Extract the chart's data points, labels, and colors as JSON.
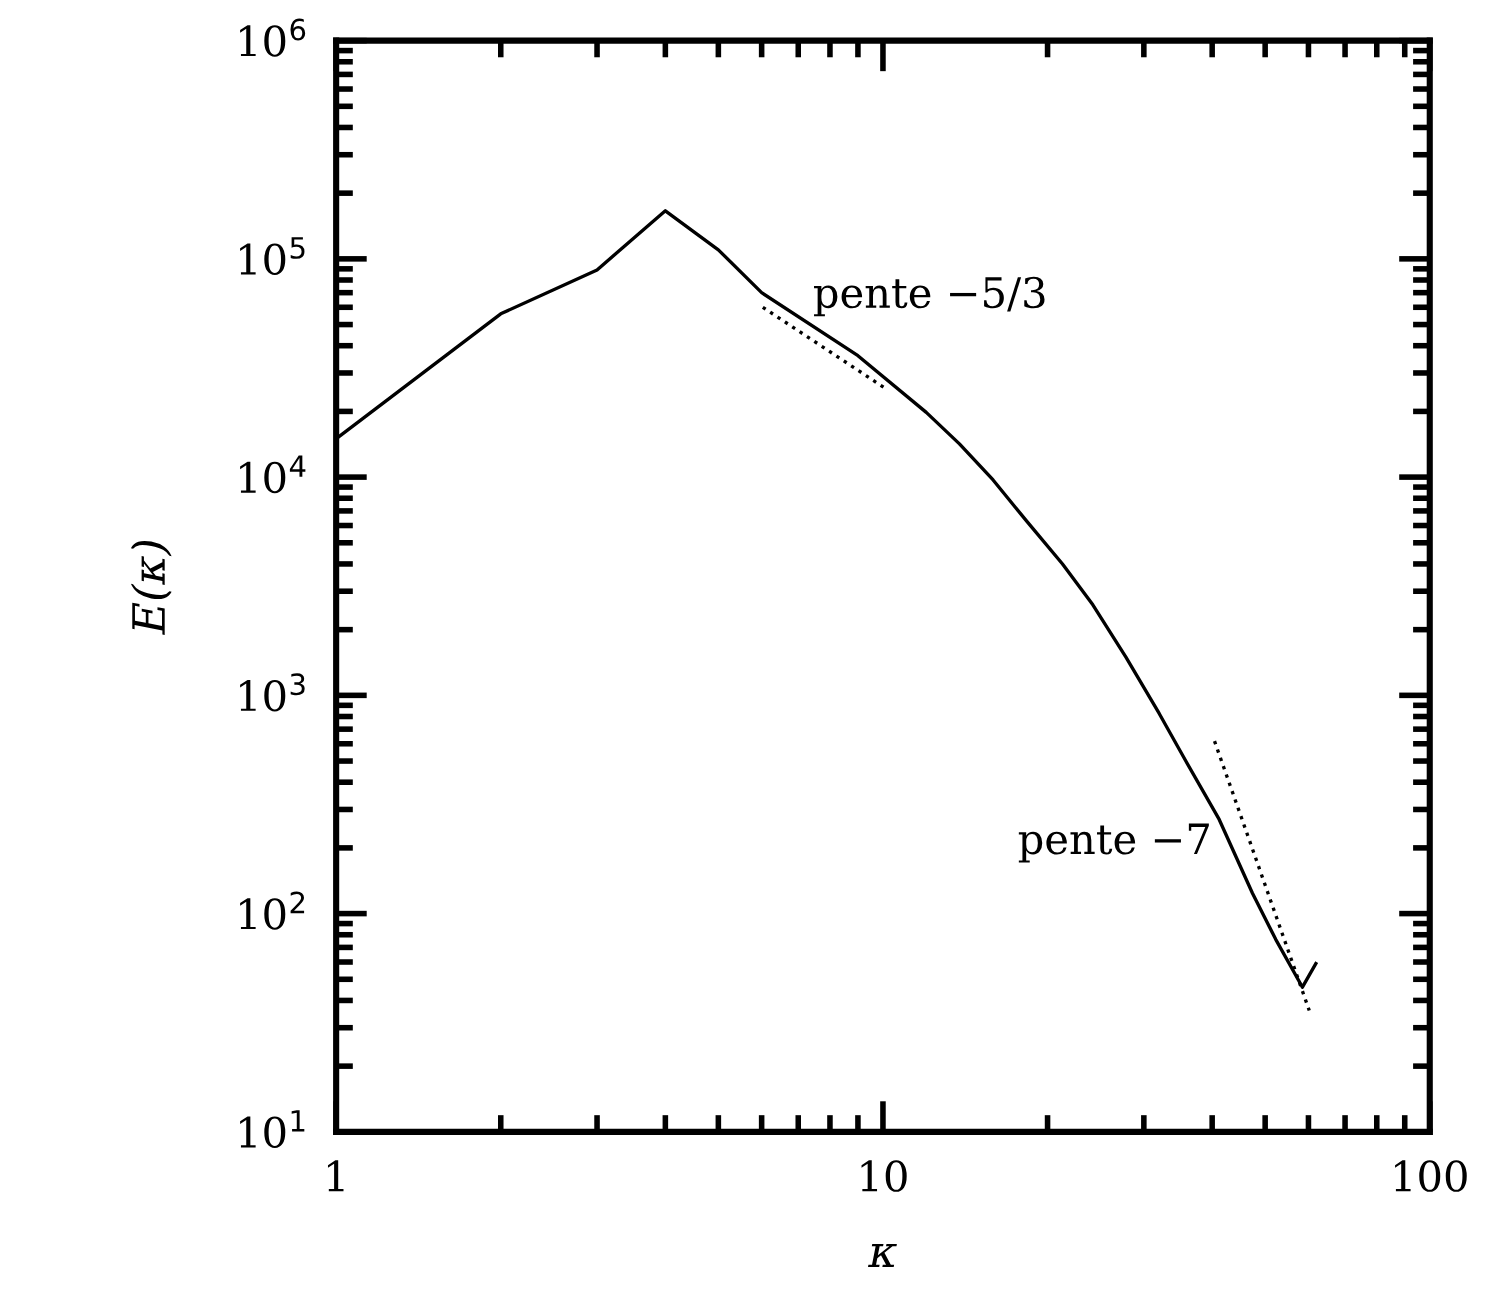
{
  "chart_data": {
    "type": "line",
    "xlabel": "κ",
    "ylabel": "E(κ)",
    "log": "xy",
    "grid": false,
    "legend": false,
    "marker": "none",
    "xlim": [
      1,
      100
    ],
    "xticks": [
      1,
      10,
      100
    ],
    "ylim": [
      10,
      1000000
    ],
    "yticks": [
      {
        "value": 10,
        "label": "10$^{1}$"
      },
      {
        "value": 100,
        "label": "10$^{2}$"
      },
      {
        "value": 1000,
        "label": "10$^{3}$"
      },
      {
        "value": 10000,
        "label": "10$^{4}$"
      },
      {
        "value": 100000,
        "label": "10$^{5}$"
      },
      {
        "value": 1000000,
        "label": "10$^{6}$"
      }
    ],
    "series": [
      {
        "color": "#000000",
        "line_style": "solid",
        "x": [
          1,
          2,
          3,
          4,
          5,
          6,
          9,
          12,
          13.8,
          15.9,
          18.3,
          21.3,
          24.2,
          27.8,
          32,
          35.8,
          41.2,
          47.4,
          52.3,
          58.5,
          61.9
        ],
        "values": [
          15000,
          56000,
          89000,
          166000,
          110000,
          70000,
          36000,
          19800,
          14200,
          9700,
          6300,
          4000,
          2600,
          1500,
          826,
          500,
          270,
          124,
          76,
          46,
          59
        ]
      },
      {
        "color": "#000000",
        "line_style": "dotted",
        "x": [
          6.03,
          10.1
        ],
        "values": [
          60000,
          25500
        ]
      },
      {
        "color": "#000000",
        "line_style": "dotted",
        "x": [
          40.4,
          60.2
        ],
        "values": [
          617,
          36
        ]
      }
    ],
    "annotations": [
      "pente −5/3",
      "pente −7"
    ]
  }
}
